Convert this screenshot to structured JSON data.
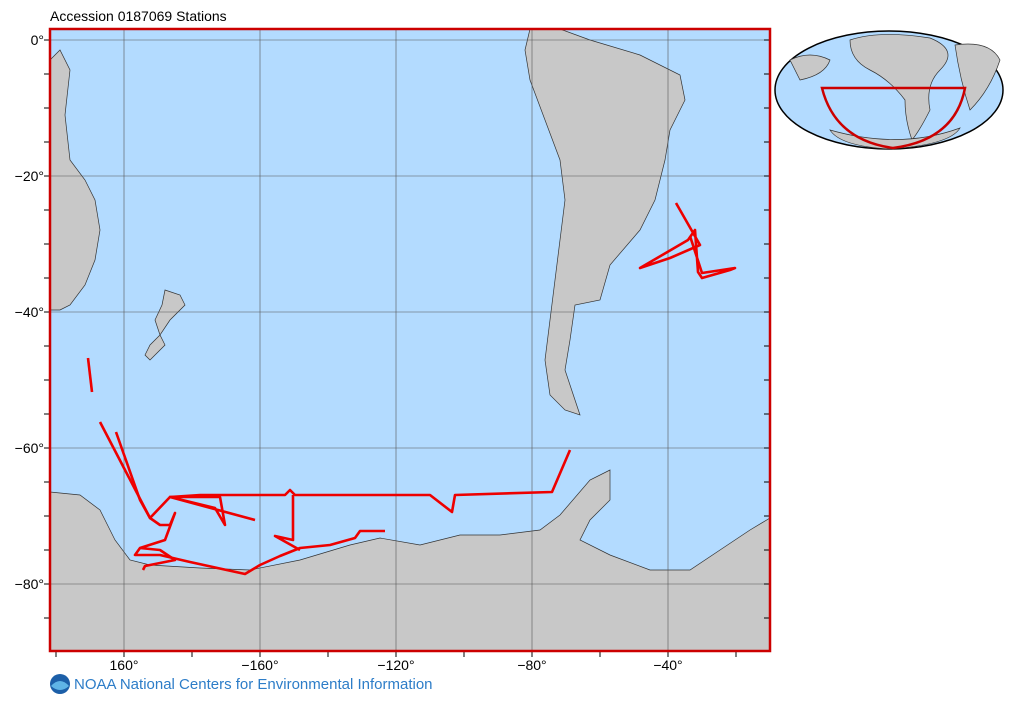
{
  "map": {
    "title": "Accession 0187069 Stations",
    "lat_labels": [
      "0°",
      "−20°",
      "−40°",
      "−60°",
      "−80°"
    ],
    "lon_labels": [
      "160°",
      "−160°",
      "−120°",
      "−80°",
      "−40°"
    ],
    "footer": "NOAA National Centers for Environmental Information"
  }
}
